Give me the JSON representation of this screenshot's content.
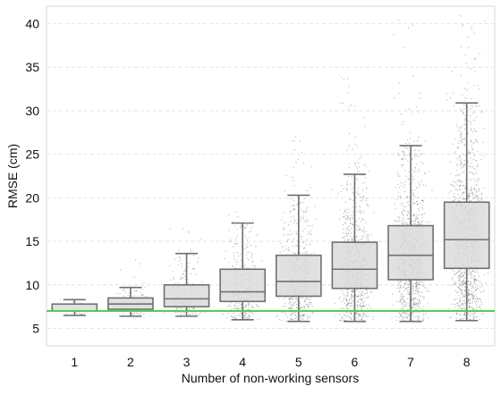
{
  "chart_data": {
    "type": "box",
    "title": "",
    "xlabel": "Number of non-working sensors",
    "ylabel": "RMSE (cm)",
    "categories": [
      "1",
      "2",
      "3",
      "4",
      "5",
      "6",
      "7",
      "8"
    ],
    "ylim": [
      3,
      42
    ],
    "yticks": [
      5,
      10,
      15,
      20,
      25,
      30,
      35,
      40
    ],
    "grid": "horizontal dashed",
    "reference_line": {
      "y": 7.0,
      "color": "#5cc85c"
    },
    "box_fill": "#dcdcdc",
    "box_edge": "#707070",
    "points_color": "#555555",
    "boxes": [
      {
        "category": "1",
        "whislo": 6.5,
        "q1": 7.0,
        "med": 7.0,
        "q3": 7.8,
        "whishi": 8.3,
        "max_point": 8.3,
        "n_points": 40
      },
      {
        "category": "2",
        "whislo": 6.4,
        "q1": 7.2,
        "med": 7.8,
        "q3": 8.5,
        "whishi": 9.7,
        "max_point": 13.5,
        "n_points": 120
      },
      {
        "category": "3",
        "whislo": 6.4,
        "q1": 7.5,
        "med": 8.4,
        "q3": 10.0,
        "whishi": 13.6,
        "max_point": 16.5,
        "n_points": 250
      },
      {
        "category": "4",
        "whislo": 6.0,
        "q1": 8.1,
        "med": 9.2,
        "q3": 11.8,
        "whishi": 17.1,
        "max_point": 19.0,
        "n_points": 400
      },
      {
        "category": "5",
        "whislo": 5.8,
        "q1": 8.7,
        "med": 10.4,
        "q3": 13.4,
        "whishi": 20.3,
        "max_point": 27.0,
        "n_points": 650
      },
      {
        "category": "6",
        "whislo": 5.8,
        "q1": 9.6,
        "med": 11.8,
        "q3": 14.9,
        "whishi": 22.7,
        "max_point": 34.0,
        "n_points": 900
      },
      {
        "category": "7",
        "whislo": 5.8,
        "q1": 10.6,
        "med": 13.4,
        "q3": 16.8,
        "whishi": 26.0,
        "max_point": 41.0,
        "n_points": 1100
      },
      {
        "category": "8",
        "whislo": 5.9,
        "q1": 11.9,
        "med": 15.2,
        "q3": 19.5,
        "whishi": 30.9,
        "max_point": 41.0,
        "n_points": 1300
      }
    ]
  }
}
